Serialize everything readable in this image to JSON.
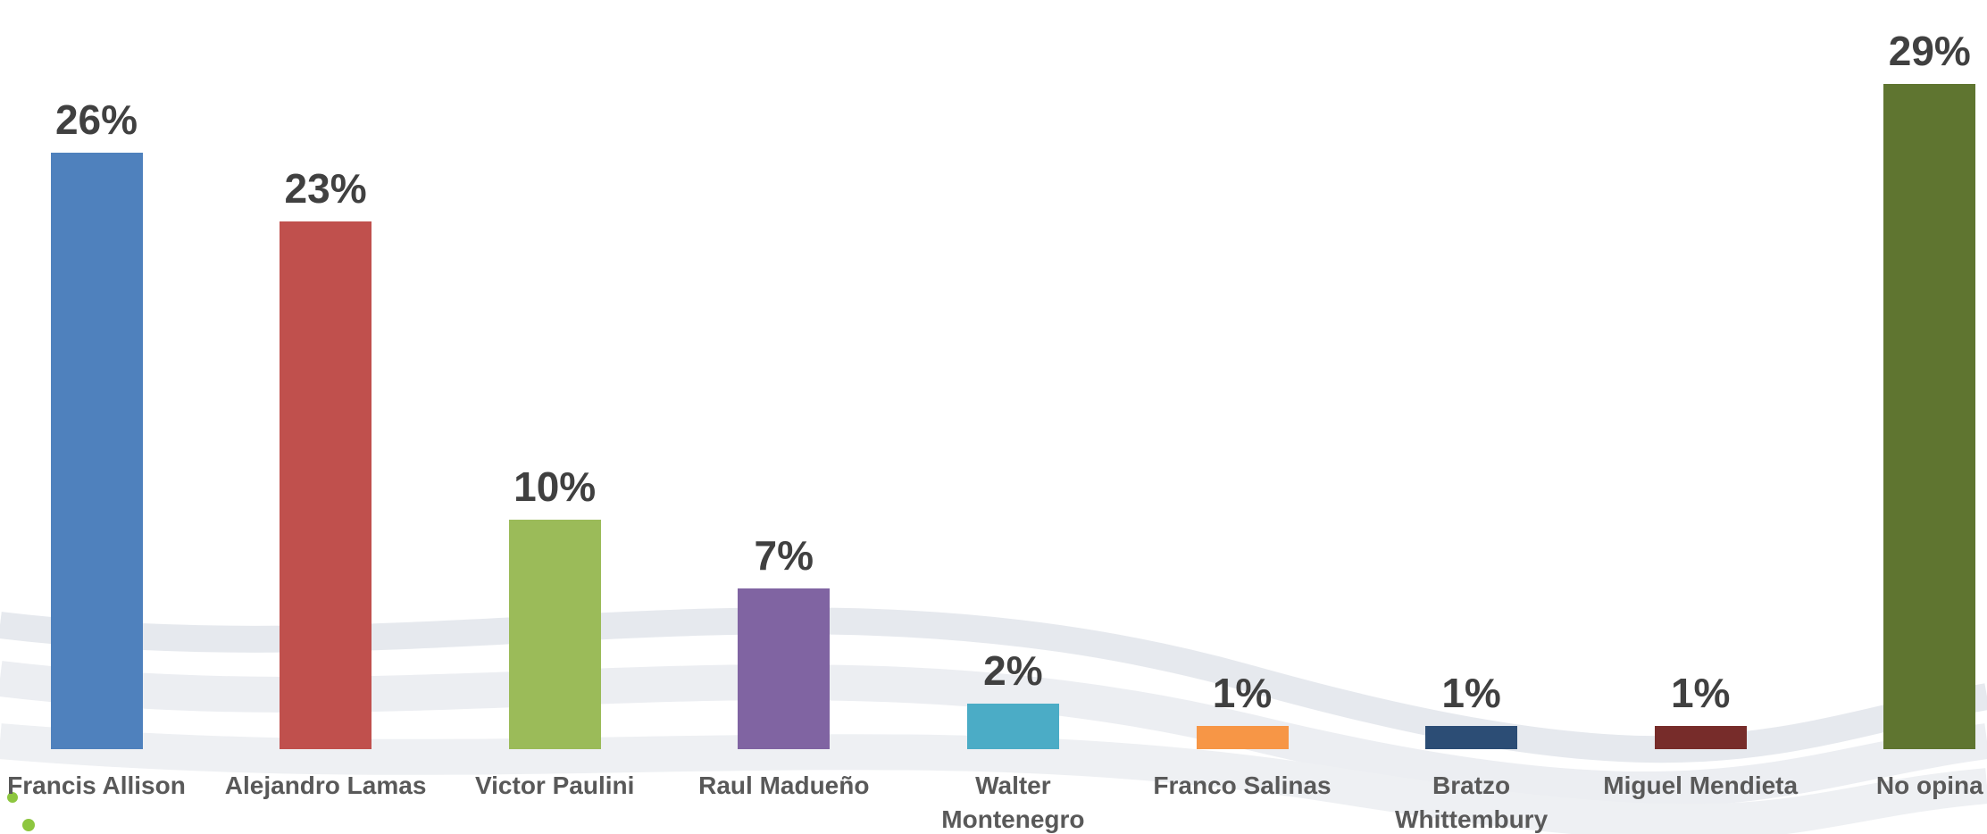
{
  "chart_data": {
    "type": "bar",
    "categories": [
      "Francis Allison",
      "Alejandro Lamas",
      "Victor Paulini",
      "Raul Madueño",
      "Walter Montenegro",
      "Franco Salinas",
      "Bratzo Whittembury",
      "Miguel Mendieta",
      "No opina"
    ],
    "values": [
      26,
      23,
      10,
      7,
      2,
      1,
      1,
      1,
      29
    ],
    "value_labels": [
      "26%",
      "23%",
      "10%",
      "7%",
      "2%",
      "1%",
      "1%",
      "1%",
      "29%"
    ],
    "colors": [
      "#4f81bd",
      "#c0504d",
      "#9bbb59",
      "#8064a2",
      "#4bacc6",
      "#f79646",
      "#2c4d75",
      "#772c2a",
      "#5f7530"
    ]
  }
}
